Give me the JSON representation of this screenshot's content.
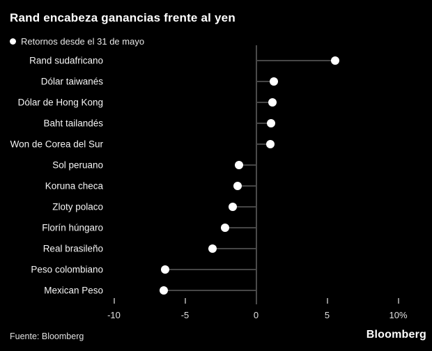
{
  "chart": {
    "title": "Rand encabeza ganancias frente al yen",
    "legend": "Retornos desde el 31 de mayo",
    "source": "Fuente: Bloomberg"
  },
  "footer": {
    "logo": "Bloomberg"
  },
  "colors": {
    "background": "#000000",
    "dot": "#ffffff",
    "stem": "#464646",
    "zero_line": "#4a4a4a",
    "tick": "#8c8c8c",
    "label": "#f5f5f5",
    "axis_label": "#e0e0e0"
  },
  "chart_data": {
    "type": "scatter",
    "subtype": "lollipop-horizontal",
    "title": "Rand encabeza ganancias frente al yen",
    "legend_entries": [
      "Retornos desde el 31 de mayo"
    ],
    "legend_position": "top-left",
    "grid": false,
    "categories": [
      "Rand sudafricano",
      "Dólar taiwanés",
      "Dólar de Hong Kong",
      "Baht tailandés",
      "Won de Corea del Sur",
      "Sol peruano",
      "Koruna checa",
      "Zloty polaco",
      "Florín húngaro",
      "Real brasileño",
      "Peso colombiano",
      "Mexican Peso"
    ],
    "values": [
      5.55,
      1.25,
      1.15,
      1.05,
      1.0,
      -1.2,
      -1.3,
      -1.65,
      -2.2,
      -3.05,
      -6.4,
      -6.5
    ],
    "xlabel": "",
    "ylabel": "",
    "xlim": [
      -10,
      10
    ],
    "x_ticks": [
      {
        "value": -10,
        "label": "-10"
      },
      {
        "value": -5,
        "label": "-5"
      },
      {
        "value": 0,
        "label": "0"
      },
      {
        "value": 5,
        "label": "5"
      },
      {
        "value": 10,
        "label": "10%"
      }
    ],
    "source": "Fuente: Bloomberg"
  }
}
